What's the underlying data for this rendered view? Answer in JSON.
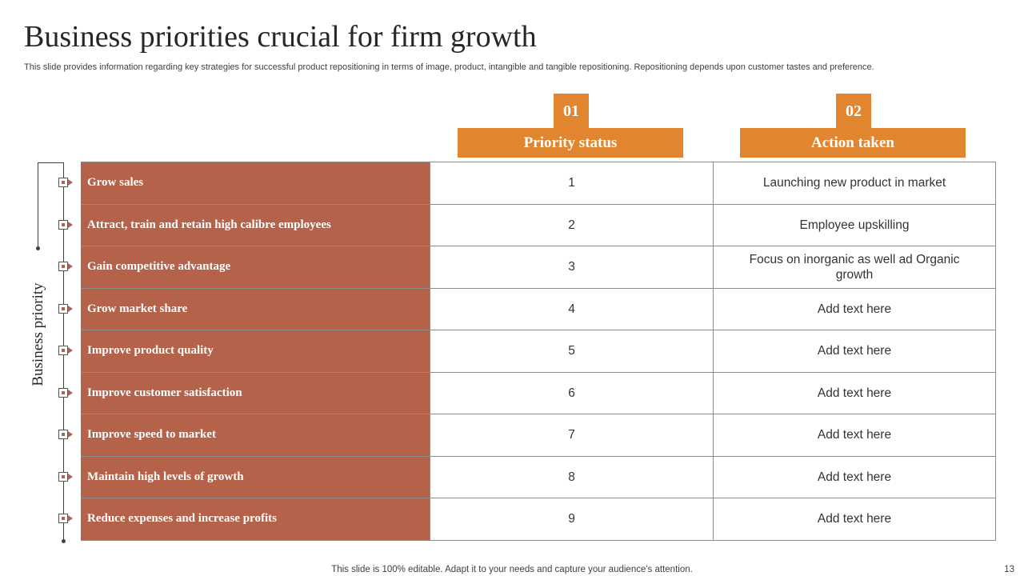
{
  "title": "Business priorities crucial for firm growth",
  "subtitle": "This slide provides information regarding key strategies for successful product repositioning in terms of image, product, intangible and tangible repositioning. Repositioning depends upon customer tastes and preference.",
  "axis_label": "Business priority",
  "columns": [
    {
      "number": "01",
      "label": "Priority status"
    },
    {
      "number": "02",
      "label": "Action taken"
    }
  ],
  "rows": [
    {
      "priority": "Grow sales",
      "status": "1",
      "action": "Launching new product in market"
    },
    {
      "priority": "Attract, train and retain high calibre employees",
      "status": "2",
      "action": "Employee upskilling"
    },
    {
      "priority": "Gain competitive advantage",
      "status": "3",
      "action": "Focus on inorganic as well ad Organic growth"
    },
    {
      "priority": "Grow market share",
      "status": "4",
      "action": "Add text here"
    },
    {
      "priority": "Improve product quality",
      "status": "5",
      "action": "Add text here"
    },
    {
      "priority": "Improve customer satisfaction",
      "status": "6",
      "action": "Add text here"
    },
    {
      "priority": "Improve speed to market",
      "status": "7",
      "action": "Add text here"
    },
    {
      "priority": "Maintain high levels of growth",
      "status": "8",
      "action": "Add text here"
    },
    {
      "priority": "Reduce expenses and increase profits",
      "status": "9",
      "action": "Add text here"
    }
  ],
  "footer": "This slide is 100% editable. Adapt it to your needs and capture your audience's attention.",
  "page_number": "13",
  "colors": {
    "accent": "#e2852f",
    "label_fill": "#b5624b"
  }
}
